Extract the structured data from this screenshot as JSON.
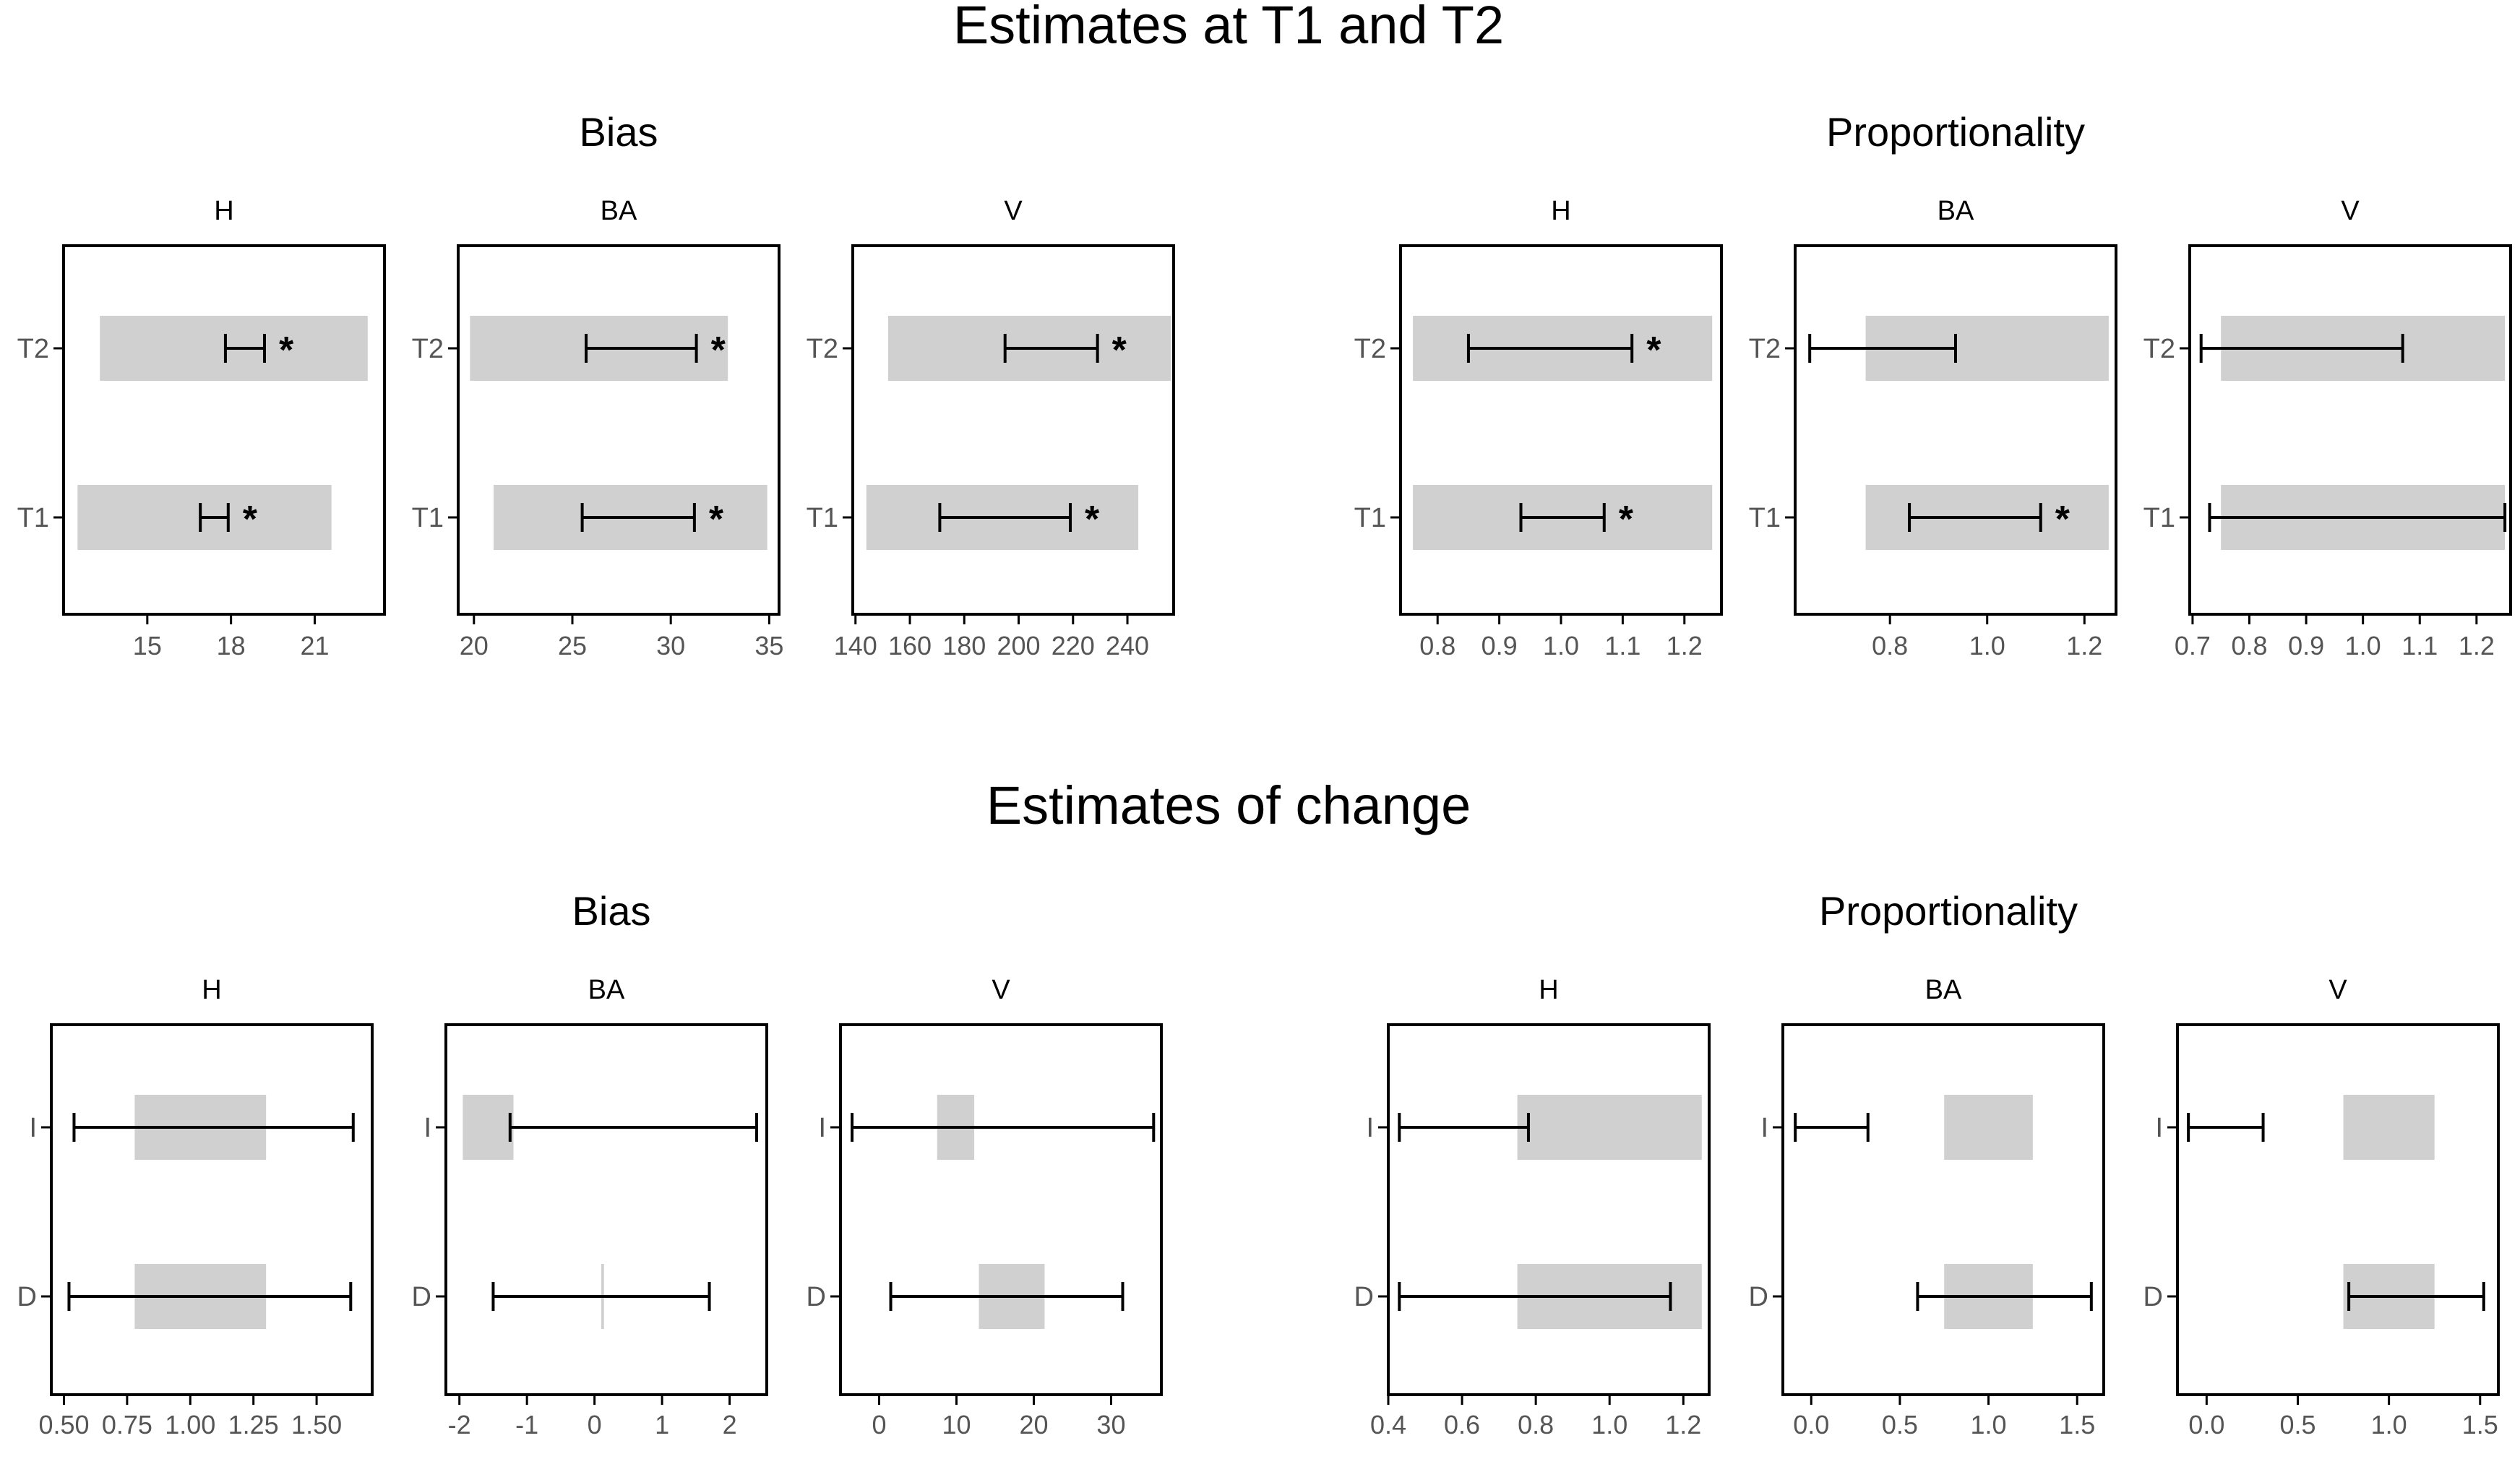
{
  "chart_data": {
    "type": "interval",
    "sections": [
      {
        "title": "Estimates at T1 and T2",
        "groups": [
          {
            "title": "Bias",
            "panels": [
              {
                "title": "H",
                "categories": [
                  "T2",
                  "T1"
                ],
                "xlim": [
                  12.0,
                  23.5
                ],
                "ticks": [
                  15,
                  18,
                  21
                ],
                "tick_labels": [
                  "15",
                  "18",
                  "21"
                ],
                "items": [
                  {
                    "label": "T2",
                    "shade": [
                      13.3,
                      22.9
                    ],
                    "ci": [
                      17.8,
                      19.2
                    ],
                    "star": true
                  },
                  {
                    "label": "T1",
                    "shade": [
                      12.5,
                      21.6
                    ],
                    "ci": [
                      16.9,
                      17.9
                    ],
                    "star": true
                  }
                ]
              },
              {
                "title": "BA",
                "categories": [
                  "T2",
                  "T1"
                ],
                "xlim": [
                  19.2,
                  35.5
                ],
                "ticks": [
                  20,
                  25,
                  30,
                  35
                ],
                "tick_labels": [
                  "20",
                  "25",
                  "30",
                  "35"
                ],
                "items": [
                  {
                    "label": "T2",
                    "shade": [
                      19.8,
                      32.9
                    ],
                    "ci": [
                      25.7,
                      31.3
                    ],
                    "star": true
                  },
                  {
                    "label": "T1",
                    "shade": [
                      21.0,
                      34.9
                    ],
                    "ci": [
                      25.5,
                      31.2
                    ],
                    "star": true
                  }
                ]
              },
              {
                "title": "V",
                "categories": [
                  "T2",
                  "T1"
                ],
                "xlim": [
                  139,
                  257
                ],
                "ticks": [
                  140,
                  160,
                  180,
                  200,
                  220,
                  240
                ],
                "tick_labels": [
                  "140",
                  "160",
                  "180",
                  "200",
                  "220",
                  "240"
                ],
                "items": [
                  {
                    "label": "T2",
                    "shade": [
                      152,
                      256
                    ],
                    "ci": [
                      195,
                      229
                    ],
                    "star": true
                  },
                  {
                    "label": "T1",
                    "shade": [
                      144,
                      244
                    ],
                    "ci": [
                      171,
                      219
                    ],
                    "star": true
                  }
                ]
              }
            ]
          },
          {
            "title": "Proportionality",
            "panels": [
              {
                "title": "H",
                "categories": [
                  "T2",
                  "T1"
                ],
                "xlim": [
                  0.74,
                  1.26
                ],
                "ticks": [
                  0.8,
                  0.9,
                  1.0,
                  1.1,
                  1.2
                ],
                "tick_labels": [
                  "0.8",
                  "0.9",
                  "1.0",
                  "1.1",
                  "1.2"
                ],
                "items": [
                  {
                    "label": "T2",
                    "shade": [
                      0.76,
                      1.245
                    ],
                    "ci": [
                      0.85,
                      1.115
                    ],
                    "star": true
                  },
                  {
                    "label": "T1",
                    "shade": [
                      0.76,
                      1.245
                    ],
                    "ci": [
                      0.935,
                      1.07
                    ],
                    "star": true
                  }
                ]
              },
              {
                "title": "BA",
                "categories": [
                  "T2",
                  "T1"
                ],
                "xlim": [
                  0.605,
                  1.265
                ],
                "ticks": [
                  0.8,
                  1.0,
                  1.2
                ],
                "tick_labels": [
                  "0.8",
                  "1.0",
                  "1.2"
                ],
                "items": [
                  {
                    "label": "T2",
                    "shade": [
                      0.75,
                      1.25
                    ],
                    "ci": [
                      0.635,
                      0.935
                    ],
                    "star": false
                  },
                  {
                    "label": "T1",
                    "shade": [
                      0.75,
                      1.25
                    ],
                    "ci": [
                      0.84,
                      1.11
                    ],
                    "star": true
                  }
                ]
              },
              {
                "title": "V",
                "categories": [
                  "T2",
                  "T1"
                ],
                "xlim": [
                  0.695,
                  1.26
                ],
                "ticks": [
                  0.7,
                  0.8,
                  0.9,
                  1.0,
                  1.1,
                  1.2
                ],
                "tick_labels": [
                  "0.7",
                  "0.8",
                  "0.9",
                  "1.0",
                  "1.1",
                  "1.2"
                ],
                "items": [
                  {
                    "label": "T2",
                    "shade": [
                      0.75,
                      1.25
                    ],
                    "ci": [
                      0.715,
                      1.07
                    ],
                    "star": false
                  },
                  {
                    "label": "T1",
                    "shade": [
                      0.75,
                      1.25
                    ],
                    "ci": [
                      0.73,
                      1.25
                    ],
                    "star": false
                  }
                ]
              }
            ]
          }
        ]
      },
      {
        "title": "Estimates of change",
        "groups": [
          {
            "title": "Bias",
            "panels": [
              {
                "title": "H",
                "categories": [
                  "I",
                  "D"
                ],
                "xlim": [
                  0.45,
                  1.72
                ],
                "ticks": [
                  0.5,
                  0.75,
                  1.0,
                  1.25,
                  1.5
                ],
                "tick_labels": [
                  "0.50",
                  "0.75",
                  "1.00",
                  "1.25",
                  "1.50"
                ],
                "items": [
                  {
                    "label": "I",
                    "shade": [
                      0.78,
                      1.3
                    ],
                    "ci": [
                      0.54,
                      1.645
                    ],
                    "star": false
                  },
                  {
                    "label": "D",
                    "shade": [
                      0.78,
                      1.3
                    ],
                    "ci": [
                      0.52,
                      1.635
                    ],
                    "star": false
                  }
                ]
              },
              {
                "title": "BA",
                "categories": [
                  "I",
                  "D"
                ],
                "xlim": [
                  -2.2,
                  2.55
                ],
                "ticks": [
                  -2,
                  -1,
                  0,
                  1,
                  2
                ],
                "tick_labels": [
                  "-2",
                  "-1",
                  "0",
                  "1",
                  "2"
                ],
                "items": [
                  {
                    "label": "I",
                    "shade": [
                      -1.95,
                      -1.2
                    ],
                    "ci": [
                      -1.25,
                      2.4
                    ],
                    "star": false
                  },
                  {
                    "label": "D",
                    "shade": [
                      0.1,
                      0.14
                    ],
                    "ci": [
                      -1.5,
                      1.7
                    ],
                    "star": false
                  }
                ]
              },
              {
                "title": "V",
                "categories": [
                  "I",
                  "D"
                ],
                "xlim": [
                  -5.0,
                  36.5
                ],
                "ticks": [
                  0,
                  10,
                  20,
                  30
                ],
                "tick_labels": [
                  "0",
                  "10",
                  "20",
                  "30"
                ],
                "items": [
                  {
                    "label": "I",
                    "shade": [
                      7.5,
                      12.3
                    ],
                    "ci": [
                      -3.5,
                      35.5
                    ],
                    "star": false
                  },
                  {
                    "label": "D",
                    "shade": [
                      12.9,
                      21.4
                    ],
                    "ci": [
                      1.5,
                      31.5
                    ],
                    "star": false
                  }
                ]
              }
            ]
          },
          {
            "title": "Proportionality",
            "panels": [
              {
                "title": "H",
                "categories": [
                  "I",
                  "D"
                ],
                "xlim": [
                  0.4,
                  1.27
                ],
                "ticks": [
                  0.4,
                  0.6,
                  0.8,
                  1.0,
                  1.2
                ],
                "tick_labels": [
                  "0.4",
                  "0.6",
                  "0.8",
                  "1.0",
                  "1.2"
                ],
                "items": [
                  {
                    "label": "I",
                    "shade": [
                      0.75,
                      1.25
                    ],
                    "ci": [
                      0.43,
                      0.78
                    ],
                    "star": false
                  },
                  {
                    "label": "D",
                    "shade": [
                      0.75,
                      1.25
                    ],
                    "ci": [
                      0.43,
                      1.165
                    ],
                    "star": false
                  }
                ]
              },
              {
                "title": "BA",
                "categories": [
                  "I",
                  "D"
                ],
                "xlim": [
                  -0.16,
                  1.65
                ],
                "ticks": [
                  0.0,
                  0.5,
                  1.0,
                  1.5
                ],
                "tick_labels": [
                  "0.0",
                  "0.5",
                  "1.0",
                  "1.5"
                ],
                "items": [
                  {
                    "label": "I",
                    "shade": [
                      0.75,
                      1.25
                    ],
                    "ci": [
                      -0.09,
                      0.32
                    ],
                    "star": false
                  },
                  {
                    "label": "D",
                    "shade": [
                      0.75,
                      1.25
                    ],
                    "ci": [
                      0.6,
                      1.58
                    ],
                    "star": false
                  }
                ]
              },
              {
                "title": "V",
                "categories": [
                  "I",
                  "D"
                ],
                "xlim": [
                  -0.16,
                  1.6
                ],
                "ticks": [
                  0.0,
                  0.5,
                  1.0,
                  1.5
                ],
                "tick_labels": [
                  "0.0",
                  "0.5",
                  "1.0",
                  "1.5"
                ],
                "items": [
                  {
                    "label": "I",
                    "shade": [
                      0.75,
                      1.25
                    ],
                    "ci": [
                      -0.1,
                      0.31
                    ],
                    "star": false
                  },
                  {
                    "label": "D",
                    "shade": [
                      0.75,
                      1.25
                    ],
                    "ci": [
                      0.78,
                      1.52
                    ],
                    "star": false
                  }
                ]
              }
            ]
          }
        ]
      }
    ],
    "star_label": "*",
    "colors": {
      "shade": "#d0d0d0",
      "line": "#000000",
      "text": "#000000",
      "tick_text": "#555555"
    }
  }
}
